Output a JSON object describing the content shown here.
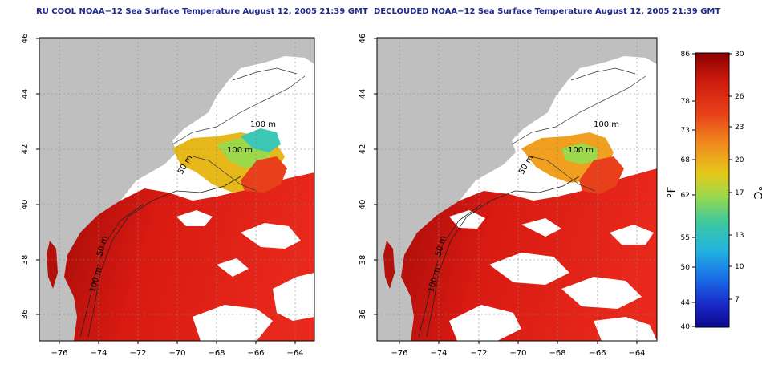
{
  "panels": [
    {
      "title": "RU COOL NOAA−12 Sea Surface Temperature August 12, 2005 21:39 GMT",
      "variant": "cool"
    },
    {
      "title": "DECLOUDED NOAA−12 Sea Surface Temperature August 12, 2005 21:39 GMT",
      "variant": "declouded"
    }
  ],
  "axes": {
    "lon_ticks": [
      "−76",
      "−74",
      "−72",
      "−70",
      "−68",
      "−66",
      "−64"
    ],
    "lat_ticks": [
      "36",
      "38",
      "40",
      "42",
      "44",
      "46"
    ],
    "lon_range": [
      -77,
      -63
    ],
    "lat_range": [
      35,
      46
    ],
    "grid": "dotted"
  },
  "isobaths": [
    {
      "label": "100 m"
    },
    {
      "label": "100 m"
    },
    {
      "label": "50 m"
    },
    {
      "label": "50 m"
    },
    {
      "label": "100 m"
    }
  ],
  "colorbar": {
    "fahrenheit_ticks": [
      "86",
      "78",
      "73",
      "68",
      "62",
      "55",
      "50",
      "44",
      "40"
    ],
    "celsius_ticks": [
      "30",
      "26",
      "23",
      "20",
      "17",
      "13",
      "10",
      "7"
    ],
    "f_unit": "°F",
    "c_unit": "°C",
    "range_c": [
      4,
      30
    ],
    "colors": [
      "#8b0000",
      "#cc1a0d",
      "#e8401a",
      "#f08a1e",
      "#e6c81a",
      "#9cd84a",
      "#3cc8a0",
      "#22b4e0",
      "#1a6ee6",
      "#1a28c8",
      "#0a0a8c"
    ]
  },
  "colors": {
    "land": "#bfbfbf",
    "cloud": "#ffffff",
    "ocean_warm": "#e0231a",
    "ocean_hot": "#b4100c",
    "ocean_mid": "#f08a1e",
    "ocean_cool": "#e6c81a",
    "ocean_cold": "#9cd84a",
    "ocean_coldest": "#22b4e0"
  }
}
